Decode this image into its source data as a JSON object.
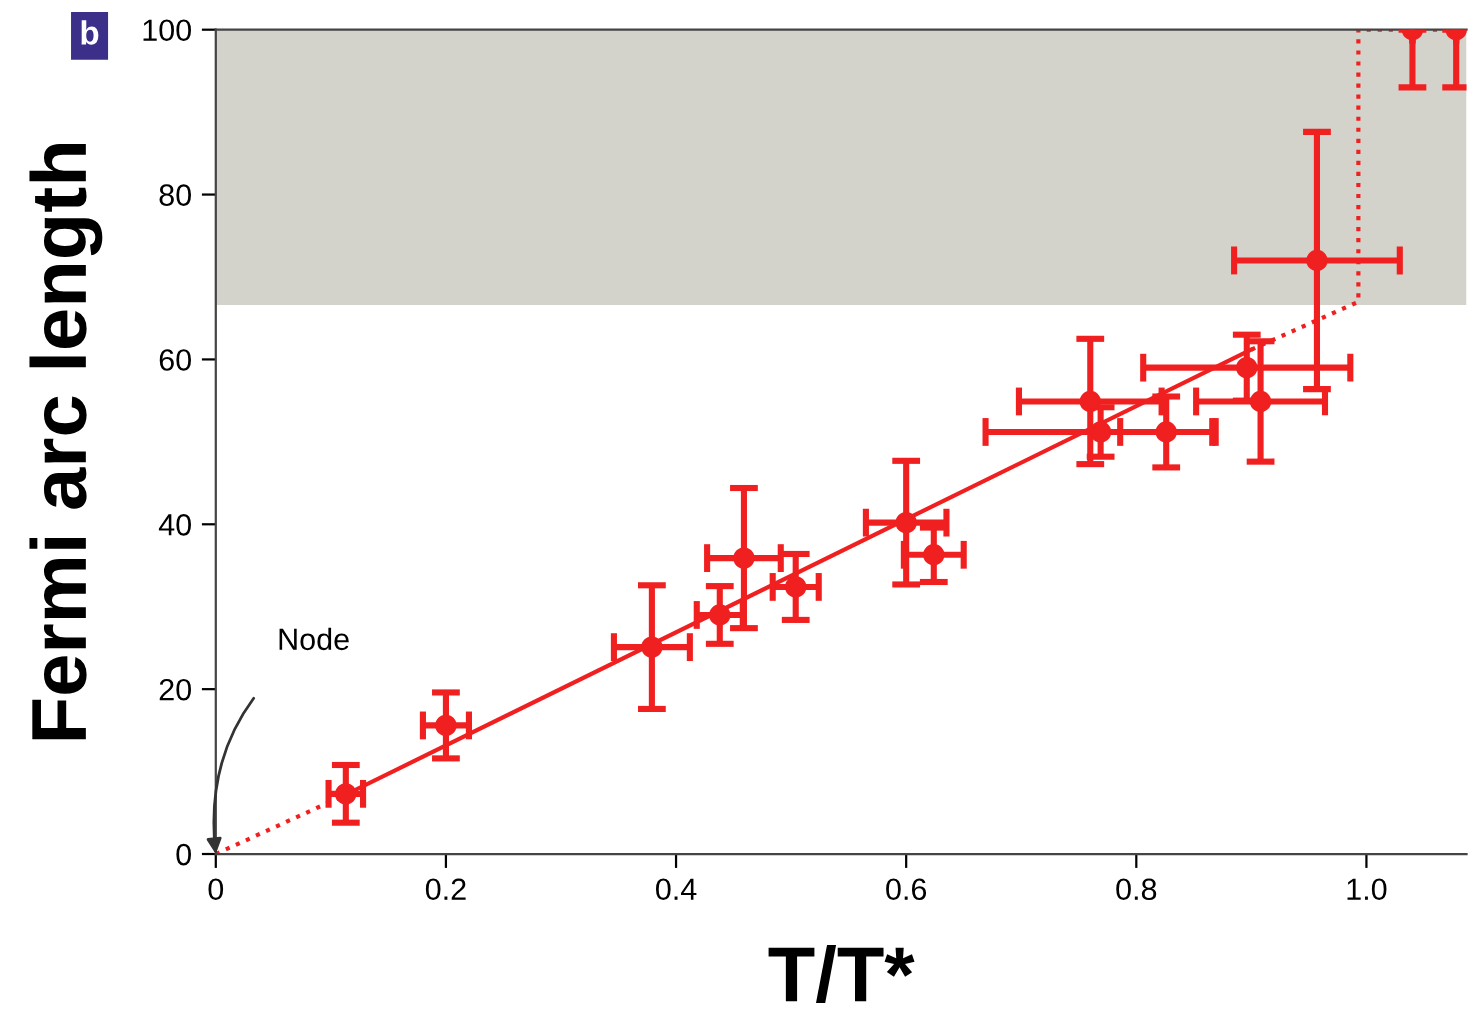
{
  "chart_data": {
    "type": "scatter",
    "xlabel": "T/T*",
    "ylabel": "Fermi arc length",
    "annotations": [
      "b",
      "Node"
    ],
    "xlim": [
      0,
      1.087
    ],
    "ylim": [
      0,
      100
    ],
    "xticks": [
      0,
      0.2,
      0.4,
      0.6,
      0.8,
      {
        "value": 1.0,
        "label": "1.0"
      }
    ],
    "yticks": [
      0,
      20,
      40,
      60,
      80,
      100
    ],
    "grid": false,
    "legend": false,
    "bands": [
      {
        "axis": "y",
        "from": 66.6,
        "to": 100,
        "color": "#d3d3cb"
      }
    ],
    "series": [
      {
        "type": "line",
        "color": "#f02020",
        "line_style": "solid",
        "x": [
          0.11,
          0.9
        ],
        "values": [
          7.0,
          61.2
        ]
      },
      {
        "type": "line",
        "color": "#f02020",
        "line_style": "dotted",
        "x": [
          0,
          0.11
        ],
        "values": [
          0,
          7.0
        ]
      },
      {
        "type": "line",
        "color": "#f02020",
        "line_style": "dotted",
        "x": [
          0.9,
          0.993,
          0.993,
          1.087
        ],
        "values": [
          61.2,
          67,
          100,
          100
        ]
      },
      {
        "color": "#f02020",
        "marker": "circle",
        "x": [
          0.113,
          0.2,
          0.379,
          0.438,
          0.459,
          0.504,
          0.6,
          0.624,
          0.76,
          0.769,
          0.826,
          0.896,
          0.908,
          0.957,
          1.04,
          1.078
        ],
        "values": [
          7.3,
          15.6,
          25.1,
          29,
          35.9,
          32.4,
          40.2,
          36.3,
          54.9,
          51.2,
          51.2,
          59,
          54.9,
          72,
          100,
          100
        ],
        "errors": [
          3.5,
          4,
          7.5,
          3.5,
          8.5,
          4,
          7.5,
          3.3,
          7.6,
          3,
          4.3,
          4,
          7.3,
          15.6,
          [
            93,
            100
          ],
          [
            93,
            100
          ]
        ],
        "xerrors": [
          0.015,
          0.02,
          0.033,
          0.02,
          0.032,
          0.02,
          0.035,
          0.026,
          0.062,
          0.1,
          0.04,
          0.09,
          0.056,
          0.072,
          null,
          null
        ]
      }
    ]
  }
}
